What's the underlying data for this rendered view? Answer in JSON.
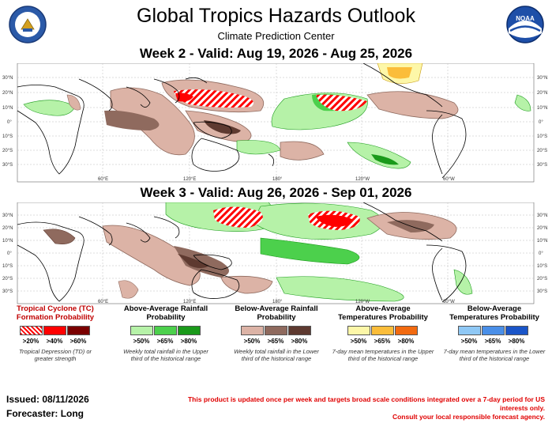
{
  "header": {
    "title": "Global Tropics Hazards Outlook",
    "subtitle": "Climate Prediction Center"
  },
  "week2": {
    "title": "Week 2 - Valid: Aug 19, 2026 - Aug 25, 2026"
  },
  "week3": {
    "title": "Week 3 - Valid: Aug 26, 2026 - Sep 01, 2026"
  },
  "map_axes": {
    "lat_left": [
      "30°N",
      "20°N",
      "10°N",
      "0°",
      "10°S",
      "20°S",
      "30°S"
    ],
    "lat_right": [
      "30°N",
      "20°N",
      "10°N",
      "0°",
      "10°S",
      "20°S",
      "30°S"
    ],
    "lon": [
      "60°E",
      "120°E",
      "180°",
      "120°W",
      "60°W"
    ]
  },
  "legend": {
    "tc": {
      "title": "Tropical Cyclone (TC) Formation Probability",
      "labels": [
        ">20%",
        ">40%",
        ">60%"
      ],
      "note": "Tropical Depression (TD) or greater strength",
      "colors": [
        "#ff0000",
        "#ff0000",
        "#7a0000"
      ]
    },
    "wet": {
      "title": "Above-Average Rainfall Probability",
      "labels": [
        ">50%",
        ">65%",
        ">80%"
      ],
      "note": "Weekly total rainfall in the Upper third of the historical range",
      "colors": [
        "#b6f2a8",
        "#4cd04c",
        "#1a9a1a"
      ]
    },
    "dry": {
      "title": "Below-Average Rainfall Probability",
      "labels": [
        ">50%",
        ">65%",
        ">80%"
      ],
      "note": "Weekly total rainfall in the Lower third of the historical range",
      "colors": [
        "#dcb3a6",
        "#8f6a5e",
        "#5e3a30"
      ]
    },
    "hot": {
      "title": "Above-Average Temperatures Probability",
      "labels": [
        ">50%",
        ">65%",
        ">80%"
      ],
      "note": "7-day mean temperatures in the Upper third of the historical range",
      "colors": [
        "#fdf7a8",
        "#fbbd3a",
        "#f26a10"
      ]
    },
    "cold": {
      "title": "Below-Average Temperatures Probability",
      "labels": [
        ">50%",
        ">65%",
        ">80%"
      ],
      "note": "7-day mean temperatures in the Lower third of the historical range",
      "colors": [
        "#8fc8f5",
        "#4a8fe8",
        "#1a55c8"
      ]
    }
  },
  "footer": {
    "issued": "Issued: 08/11/2026",
    "forecaster": "Forecaster: Long",
    "disclaimer_line1": "This product is updated once per week and targets broad scale conditions integrated over a 7-day period for US interests only.",
    "disclaimer_line2": "Consult your local responsible forecast agency."
  }
}
